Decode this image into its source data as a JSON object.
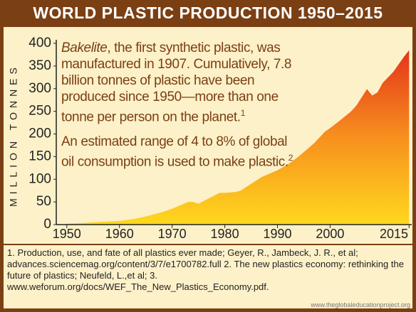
{
  "chart_data": {
    "type": "area",
    "title": "WORLD PLASTIC PRODUCTION 1950–2015",
    "y_label": "MILLION TONNES",
    "x": [
      1950,
      1952,
      1955,
      1958,
      1960,
      1963,
      1965,
      1968,
      1970,
      1972,
      1973,
      1974,
      1975,
      1977,
      1979,
      1980,
      1982,
      1983,
      1985,
      1987,
      1989,
      1990,
      1992,
      1994,
      1995,
      1997,
      1999,
      2000,
      2002,
      2004,
      2005,
      2007,
      2008,
      2009,
      2010,
      2012,
      2014,
      2015
    ],
    "values": [
      2,
      3,
      5,
      7,
      8,
      13,
      18,
      27,
      35,
      45,
      50,
      50,
      46,
      58,
      70,
      70,
      72,
      75,
      90,
      105,
      115,
      120,
      133,
      150,
      160,
      180,
      205,
      213,
      231,
      250,
      263,
      299,
      285,
      292,
      313,
      337,
      370,
      385
    ],
    "xlim": [
      1948,
      2015.5
    ],
    "xticks": [
      1950,
      1960,
      1970,
      1980,
      1990,
      2000,
      2015
    ],
    "ylim": [
      0,
      400
    ],
    "yticks": [
      0,
      50,
      100,
      150,
      200,
      250,
      300,
      350,
      400
    ],
    "annotations": [
      {
        "italic": "Bakelite",
        "text": ", the first synthetic plastic, was manufactured in 1907. Cumulatively, 7.8 billion tonnes of plastic have been produced since 1950—more than one tonne per person on the planet.",
        "sup": "1"
      },
      {
        "text": "An estimated range of 4 to 8% of global oil consumption is used to make plastic.",
        "sup": "2"
      }
    ],
    "footnote": "1. Production, use, and fate of all plastics ever made; Geyer, R., Jambeck, J. R., et al; advances.sciencemag.org/content/3/7/e1700782.full 2. The new plastics economy: rethinking the future of plastics; Neufeld, L.,et al; 3. www.weforum.org/docs/WEF_The_New_Plastics_Economy.pdf.",
    "source": "www.theglobaleducationproject.org"
  }
}
